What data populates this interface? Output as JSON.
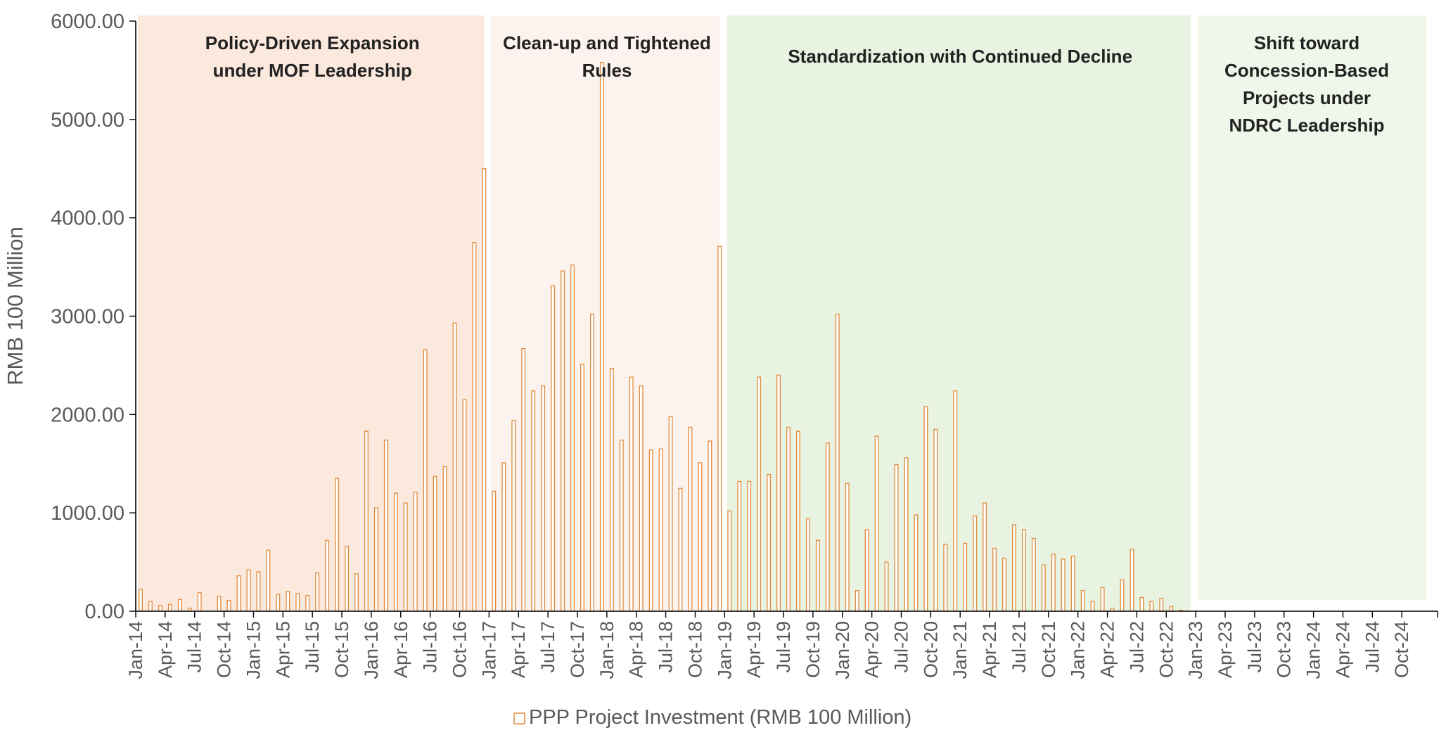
{
  "chart_data": {
    "type": "bar",
    "title": "",
    "xlabel": "",
    "ylabel": "RMB 100 Million",
    "ylim": [
      0,
      6000
    ],
    "yticks": [
      "0.00",
      "1000.00",
      "2000.00",
      "3000.00",
      "4000.00",
      "5000.00",
      "6000.00"
    ],
    "x_start": "2014-01",
    "x_end": "2024-12",
    "xtick_labels": [
      "Jan-14",
      "Apr-14",
      "Jul-14",
      "Oct-14",
      "Jan-15",
      "Apr-15",
      "Jul-15",
      "Oct-15",
      "Jan-16",
      "Apr-16",
      "Jul-16",
      "Oct-16",
      "Jan-17",
      "Apr-17",
      "Jul-17",
      "Oct-17",
      "Jan-18",
      "Apr-18",
      "Jul-18",
      "Oct-18",
      "Jan-19",
      "Apr-19",
      "Jul-19",
      "Oct-19",
      "Jan-20",
      "Apr-20",
      "Jul-20",
      "Oct-20",
      "Jan-21",
      "Apr-21",
      "Jul-21",
      "Oct-21",
      "Jan-22",
      "Apr-22",
      "Jul-22",
      "Oct-22",
      "Jan-23",
      "Apr-23",
      "Jul-23",
      "Oct-23",
      "Jan-24",
      "Apr-24",
      "Jul-24",
      "Oct-24"
    ],
    "grid": false,
    "legend_position": "bottom-center",
    "series": [
      {
        "name": "PPP Project Investment (RMB 100 Million)",
        "color": "#E08A3C",
        "values": [
          220,
          100,
          60,
          70,
          120,
          30,
          190,
          0,
          150,
          110,
          360,
          420,
          400,
          620,
          170,
          200,
          180,
          160,
          390,
          720,
          1350,
          660,
          380,
          1830,
          1050,
          1740,
          1200,
          1100,
          1210,
          2660,
          1370,
          1470,
          2930,
          2150,
          3750,
          4500,
          1220,
          1510,
          1940,
          2670,
          2240,
          2290,
          3310,
          3460,
          3520,
          2510,
          3020,
          5580,
          2470,
          1740,
          2380,
          2290,
          1640,
          1650,
          1980,
          1250,
          1870,
          1510,
          1730,
          3710,
          1020,
          1320,
          1320,
          2380,
          1390,
          2400,
          1870,
          1830,
          940,
          720,
          1710,
          3020,
          1300,
          210,
          830,
          1780,
          500,
          1490,
          1560,
          980,
          2080,
          1850,
          680,
          2240,
          690,
          970,
          1100,
          640,
          540,
          880,
          830,
          740,
          470,
          580,
          530,
          560,
          210,
          100,
          240,
          30,
          320,
          630,
          140,
          100,
          130,
          50,
          10,
          0,
          0,
          0,
          0,
          0,
          0,
          0,
          0,
          0,
          0,
          0,
          0,
          0,
          0,
          0,
          0,
          0,
          0,
          0,
          0,
          0,
          0,
          0,
          0,
          0
        ]
      }
    ],
    "phases": [
      {
        "label": "Policy-Driven Expansion under MOF Leadership",
        "lines": [
          "Policy-Driven Expansion",
          "under MOF Leadership"
        ],
        "start": "2014-01",
        "end": "2016-12",
        "color": "#FBE9DE"
      },
      {
        "label": "Clean-up and Tightened Rules",
        "lines": [
          "Clean-up and Tightened",
          "Rules"
        ],
        "start": "2017-01",
        "end": "2018-12",
        "color": "#FDF3EE"
      },
      {
        "label": "Standardization with Continued Decline",
        "lines": [
          "Standardization with Continued Decline"
        ],
        "start": "2019-01",
        "end": "2022-12",
        "color": "#E8F3E1"
      },
      {
        "label": "Shift toward Concession-Based Projects under NDRC Leadership",
        "lines": [
          "Shift toward",
          "Concession-Based",
          "Projects under",
          "NDRC Leadership"
        ],
        "start": "2023-01",
        "end": "2024-12",
        "color": "#EFF7EA"
      }
    ]
  }
}
